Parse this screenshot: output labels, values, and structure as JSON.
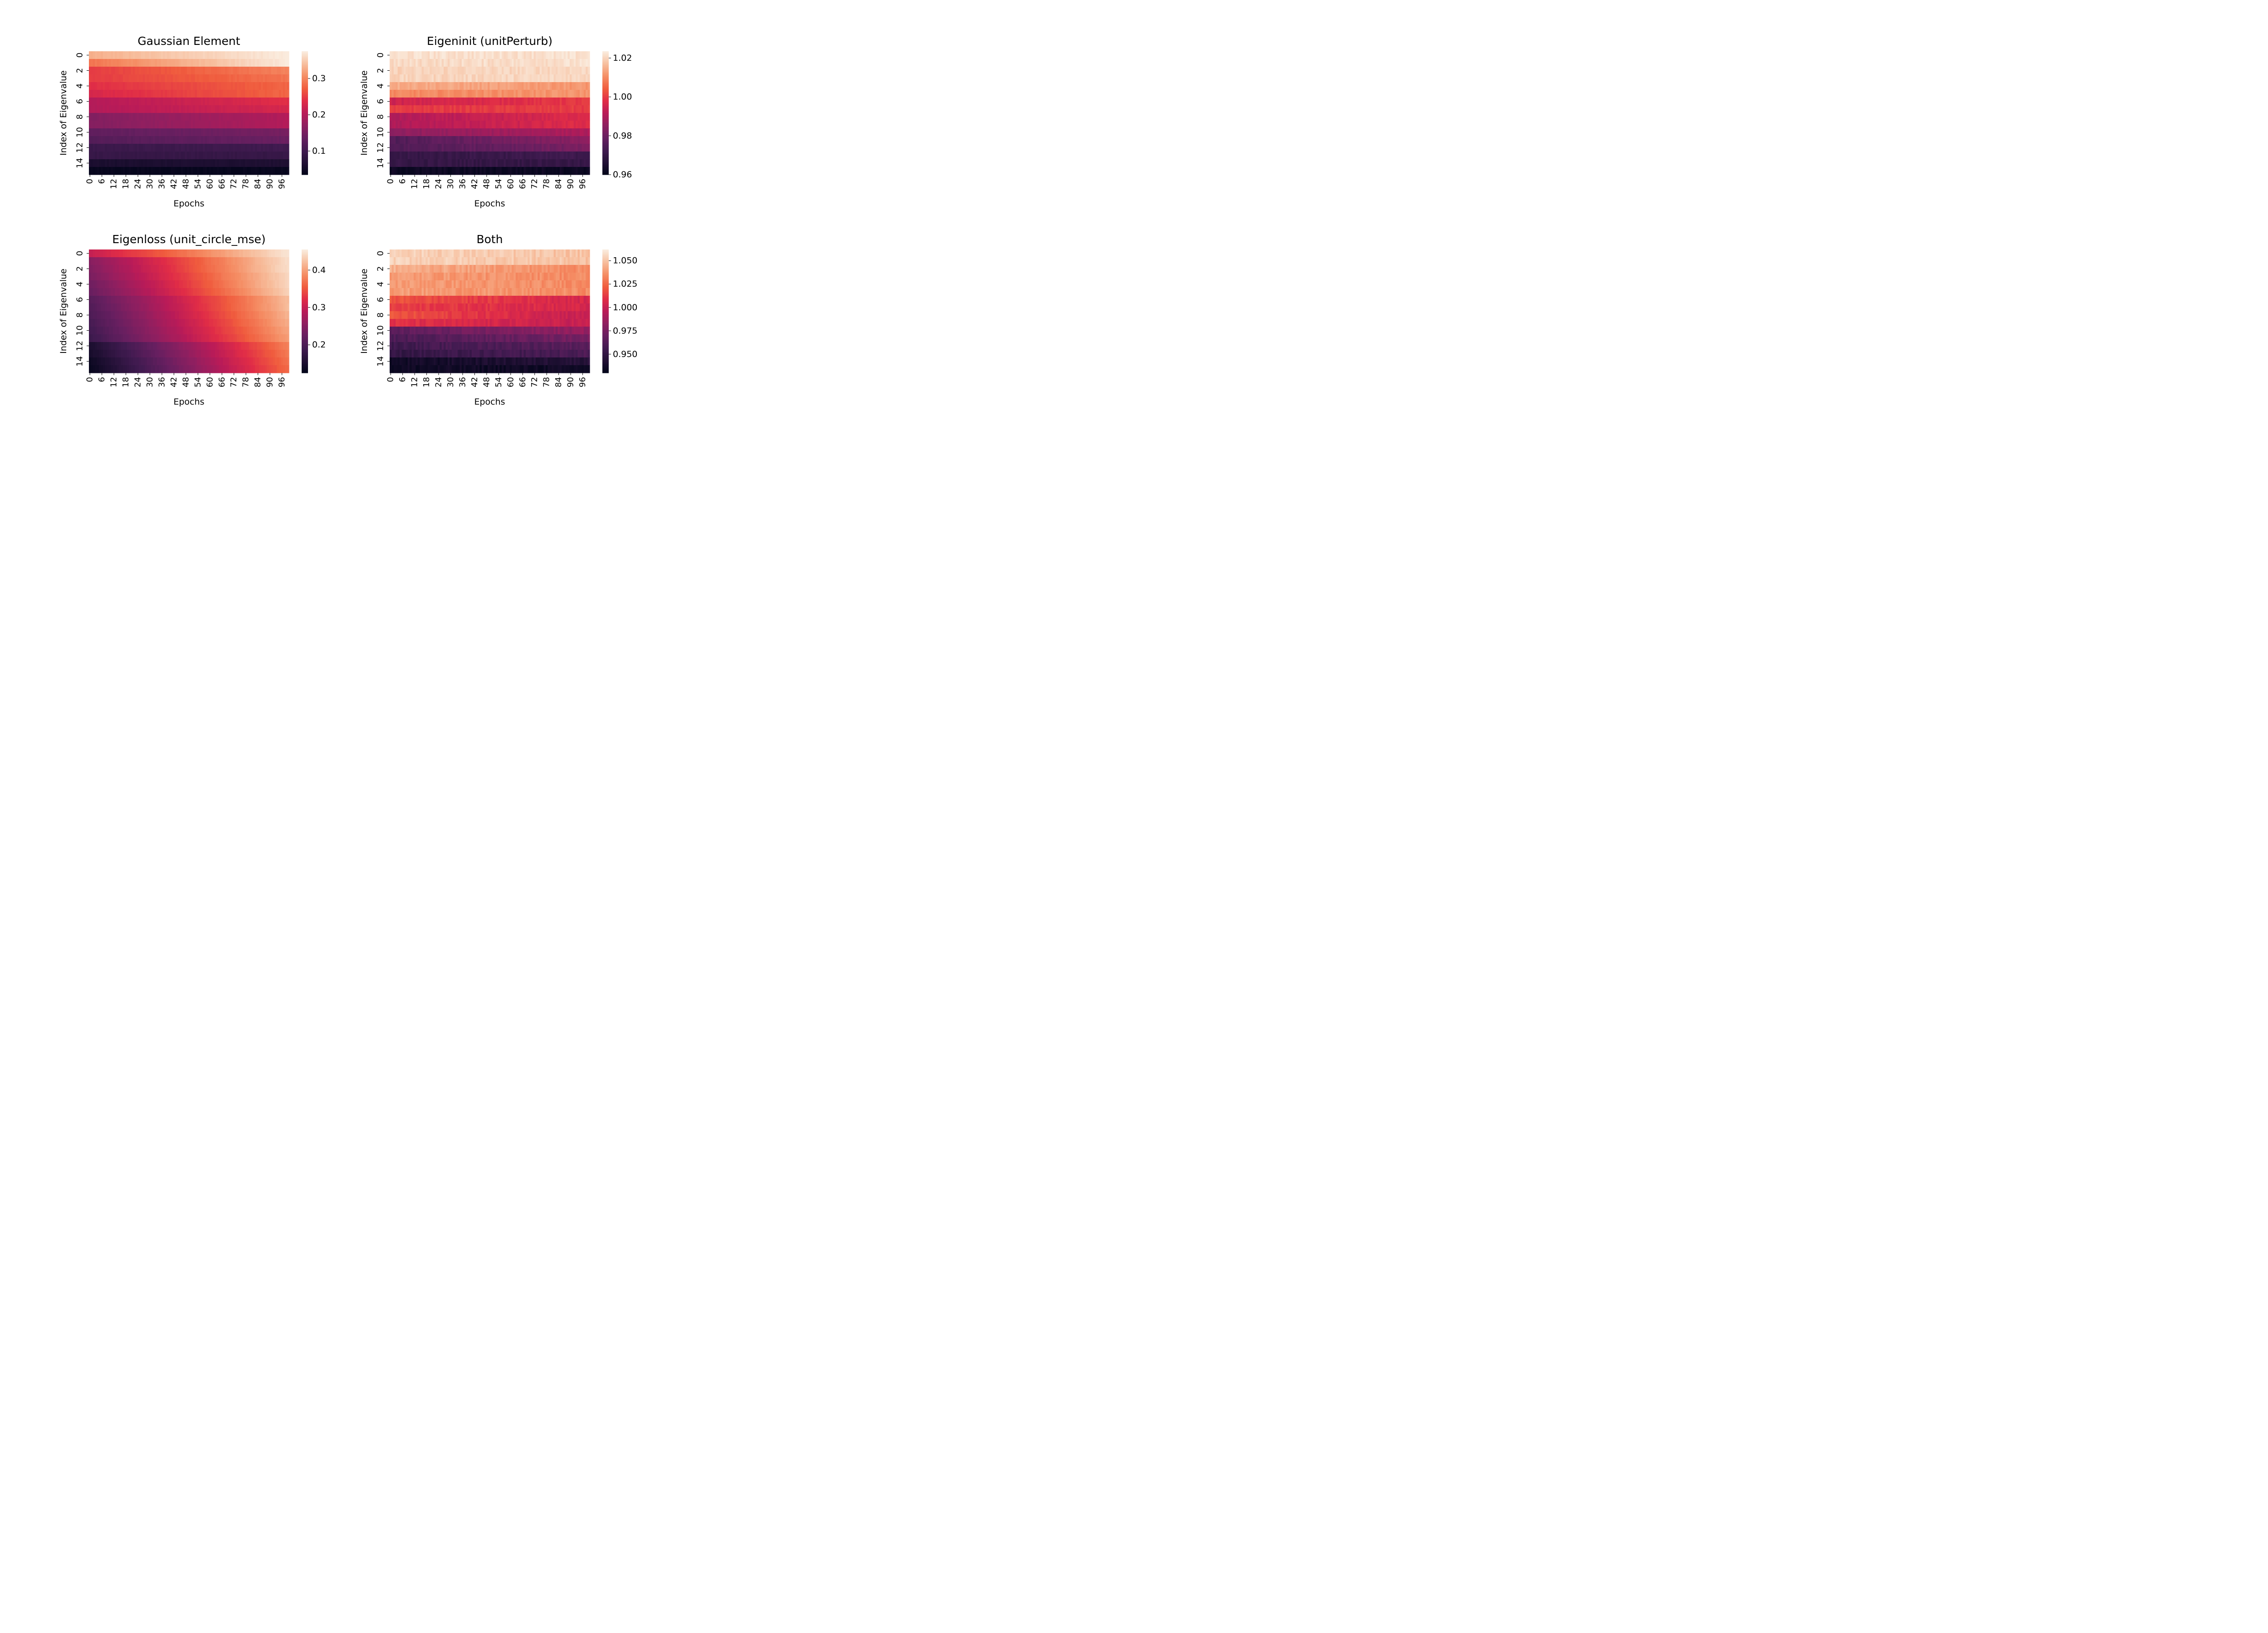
{
  "chart_data": [
    {
      "type": "heatmap",
      "title": "Gaussian Element",
      "xlabel": "Epochs",
      "ylabel": "Index of Eigenvalue",
      "x_ticks": [
        "0",
        "6",
        "12",
        "18",
        "24",
        "30",
        "36",
        "42",
        "48",
        "54",
        "60",
        "66",
        "72",
        "78",
        "84",
        "90",
        "96"
      ],
      "y_ticks": [
        "0",
        "2",
        "4",
        "6",
        "8",
        "10",
        "12",
        "14"
      ],
      "n_epochs": 100,
      "n_rows": 16,
      "colorbar": {
        "range": [
          0.035,
          0.375
        ],
        "ticks": [
          0.1,
          0.2,
          0.3
        ],
        "tick_labels": [
          "0.1",
          "0.2",
          "0.3"
        ]
      },
      "rows_start": [
        0.33,
        0.29,
        0.25,
        0.25,
        0.24,
        0.23,
        0.2,
        0.2,
        0.16,
        0.16,
        0.13,
        0.12,
        0.095,
        0.09,
        0.06,
        0.04
      ],
      "rows_end": [
        0.375,
        0.375,
        0.3,
        0.29,
        0.28,
        0.28,
        0.24,
        0.23,
        0.2,
        0.2,
        0.15,
        0.14,
        0.1,
        0.09,
        0.065,
        0.04
      ],
      "noise": 0.003
    },
    {
      "type": "heatmap",
      "title": "Eigeninit (unitPerturb)",
      "xlabel": "Epochs",
      "ylabel": "Index of Eigenvalue",
      "x_ticks": [
        "0",
        "6",
        "12",
        "18",
        "24",
        "30",
        "36",
        "42",
        "48",
        "54",
        "60",
        "66",
        "72",
        "78",
        "84",
        "90",
        "96"
      ],
      "y_ticks": [
        "0",
        "2",
        "4",
        "6",
        "8",
        "10",
        "12",
        "14"
      ],
      "n_epochs": 100,
      "n_rows": 16,
      "colorbar": {
        "range": [
          0.96,
          1.0235
        ],
        "ticks": [
          0.96,
          0.98,
          1.0,
          1.02
        ],
        "tick_labels": [
          "0.96",
          "0.98",
          "1.00",
          "1.02"
        ]
      },
      "rows_start": [
        1.022,
        1.021,
        1.02,
        1.02,
        1.015,
        1.01,
        0.995,
        1.0,
        0.99,
        0.99,
        0.985,
        0.975,
        0.975,
        0.97,
        0.97,
        0.962
      ],
      "rows_end": [
        1.022,
        1.022,
        1.021,
        1.021,
        1.012,
        1.012,
        1.0,
        1.0,
        0.998,
        0.998,
        0.99,
        0.985,
        0.982,
        0.972,
        0.97,
        0.962
      ],
      "noise": 0.0015
    },
    {
      "type": "heatmap",
      "title": "Eigenloss (unit_circle_mse)",
      "xlabel": "Epochs",
      "ylabel": "Index of Eigenvalue",
      "x_ticks": [
        "0",
        "6",
        "12",
        "18",
        "24",
        "30",
        "36",
        "42",
        "48",
        "54",
        "60",
        "66",
        "72",
        "78",
        "84",
        "90",
        "96"
      ],
      "y_ticks": [
        "0",
        "2",
        "4",
        "6",
        "8",
        "10",
        "12",
        "14"
      ],
      "n_epochs": 100,
      "n_rows": 16,
      "colorbar": {
        "range": [
          0.125,
          0.455
        ],
        "ticks": [
          0.2,
          0.3,
          0.4
        ],
        "tick_labels": [
          "0.2",
          "0.3",
          "0.4"
        ]
      },
      "rows_start": [
        0.3,
        0.25,
        0.245,
        0.24,
        0.23,
        0.225,
        0.21,
        0.205,
        0.2,
        0.195,
        0.19,
        0.185,
        0.15,
        0.145,
        0.135,
        0.13
      ],
      "rows_end": [
        0.45,
        0.445,
        0.445,
        0.44,
        0.44,
        0.435,
        0.42,
        0.42,
        0.415,
        0.41,
        0.405,
        0.4,
        0.38,
        0.375,
        0.37,
        0.365
      ],
      "noise": 0.002
    },
    {
      "type": "heatmap",
      "title": "Both",
      "xlabel": "Epochs",
      "ylabel": "Index of Eigenvalue",
      "x_ticks": [
        "0",
        "6",
        "12",
        "18",
        "24",
        "30",
        "36",
        "42",
        "48",
        "54",
        "60",
        "66",
        "72",
        "78",
        "84",
        "90",
        "96"
      ],
      "y_ticks": [
        "0",
        "2",
        "4",
        "6",
        "8",
        "10",
        "12",
        "14"
      ],
      "n_epochs": 100,
      "n_rows": 16,
      "colorbar": {
        "range": [
          0.93,
          1.062
        ],
        "ticks": [
          0.95,
          0.975,
          1.0,
          1.025,
          1.05
        ],
        "tick_labels": [
          "0.950",
          "0.975",
          "1.000",
          "1.025",
          "1.050"
        ]
      },
      "rows_start": [
        1.055,
        1.055,
        1.045,
        1.04,
        1.04,
        1.04,
        1.02,
        1.015,
        1.02,
        1.01,
        0.965,
        0.96,
        0.955,
        0.95,
        0.935,
        0.935
      ],
      "rows_end": [
        1.05,
        1.05,
        1.035,
        1.035,
        1.035,
        1.035,
        1.005,
        1.005,
        1.0,
        1.0,
        0.985,
        0.975,
        0.965,
        0.96,
        0.945,
        0.935
      ],
      "noise": 0.004
    }
  ]
}
